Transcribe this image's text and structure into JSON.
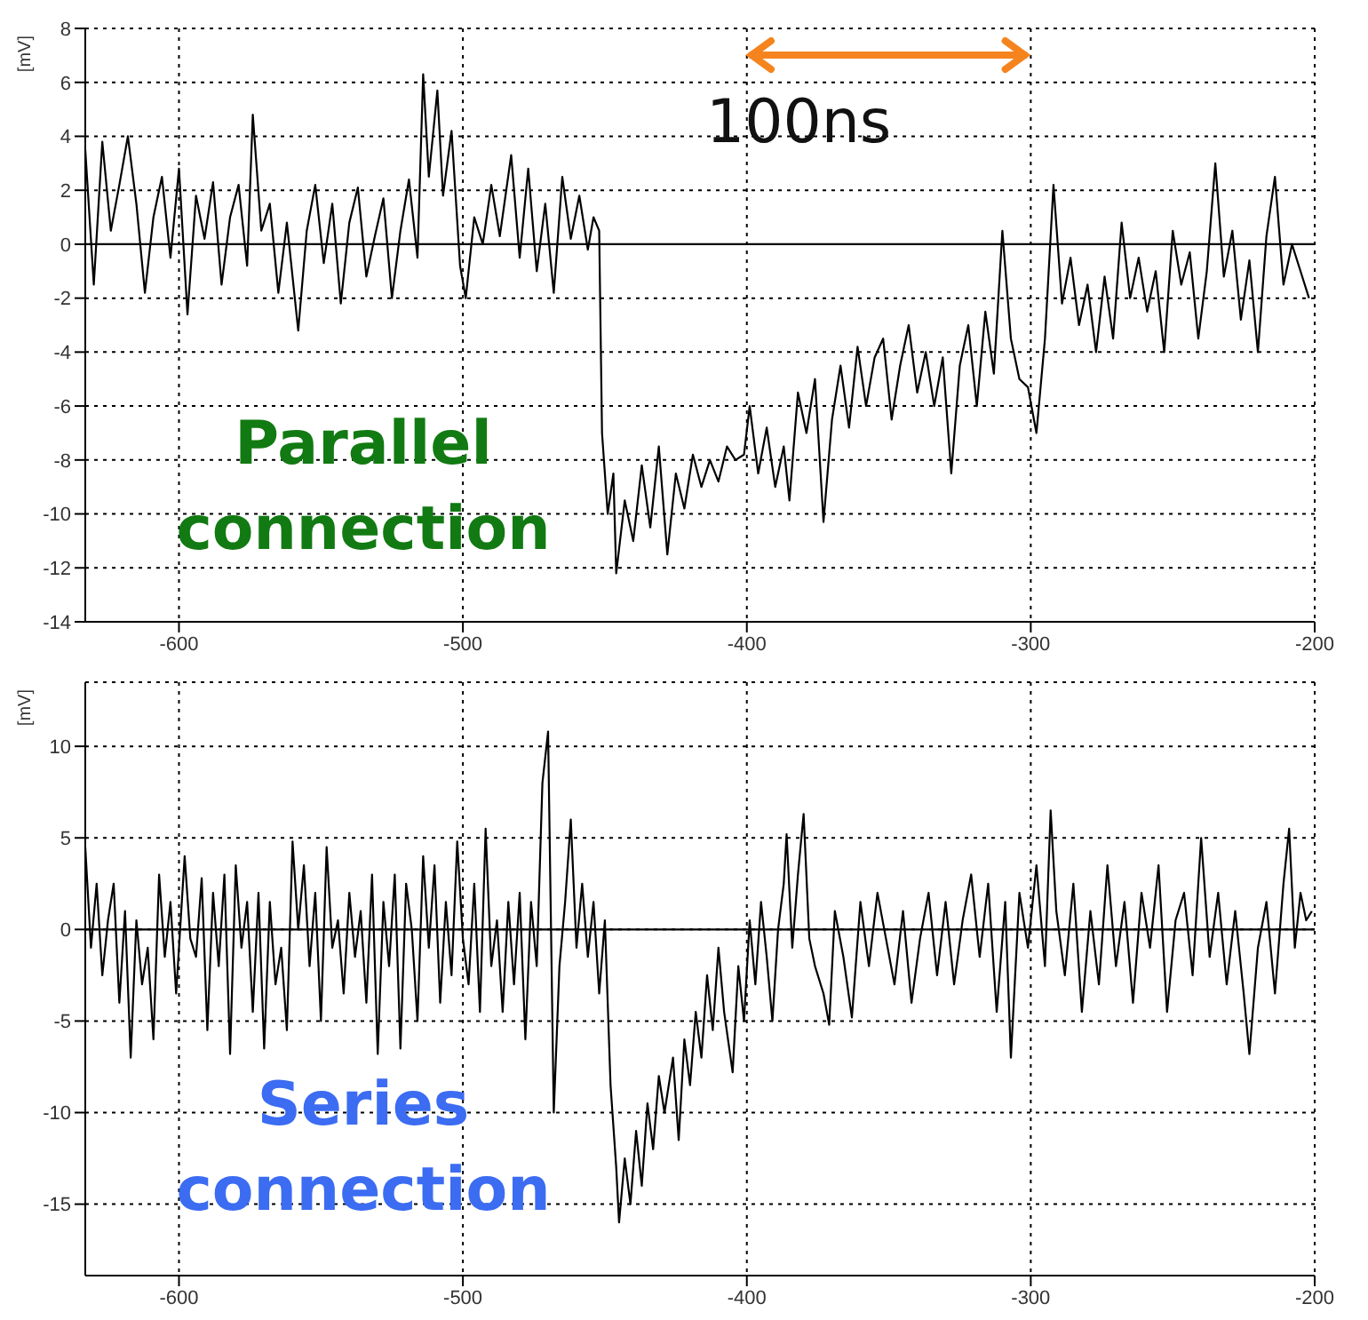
{
  "chart_data": [
    {
      "type": "line",
      "ylabel": "[mV]",
      "xlim": [
        -633,
        -200
      ],
      "xticks": [
        -600,
        -500,
        -400,
        -300,
        -200
      ],
      "ylim": [
        -14,
        8
      ],
      "yticks": [
        -14,
        -12,
        -10,
        -8,
        -6,
        -4,
        -2,
        0,
        2,
        4,
        6,
        8
      ],
      "grid": true,
      "annotations": [
        "100ns",
        "Parallel connection"
      ],
      "ref_lines": [
        {
          "axis": "y",
          "value": 0,
          "color": "#000000",
          "line_style": "solid"
        }
      ],
      "series": [
        {
          "color": "#000000",
          "x": [
            -633,
            -630,
            -627,
            -624,
            -621,
            -618,
            -615,
            -612,
            -609,
            -606,
            -603,
            -600,
            -597,
            -594,
            -591,
            -588,
            -585,
            -582,
            -579,
            -576,
            -574,
            -571,
            -568,
            -565,
            -562,
            -558,
            -555,
            -552,
            -549,
            -546,
            -543,
            -540,
            -537,
            -534,
            -531,
            -528,
            -525,
            -522,
            -519,
            -516,
            -514,
            -512,
            -509,
            -507,
            -504,
            -501,
            -499,
            -496,
            -493,
            -490,
            -487,
            -483,
            -480,
            -477,
            -474,
            -471,
            -468,
            -465,
            -462,
            -459,
            -456,
            -454,
            -452,
            -451,
            -449,
            -447,
            -446,
            -443,
            -440,
            -437,
            -434,
            -431,
            -428,
            -425,
            -422,
            -419,
            -416,
            -413,
            -410,
            -407,
            -404,
            -401,
            -399,
            -396,
            -393,
            -390,
            -387,
            -385,
            -382,
            -379,
            -376,
            -373,
            -370,
            -367,
            -364,
            -361,
            -358,
            -355,
            -352,
            -349,
            -346,
            -343,
            -340,
            -337,
            -334,
            -331,
            -328,
            -325,
            -322,
            -319,
            -316,
            -313,
            -310,
            -307,
            -304,
            -301,
            -298,
            -295,
            -292,
            -289,
            -286,
            -283,
            -280,
            -277,
            -274,
            -271,
            -268,
            -265,
            -262,
            -259,
            -256,
            -253,
            -250,
            -247,
            -244,
            -241,
            -238,
            -235,
            -232,
            -229,
            -226,
            -223,
            -220,
            -217,
            -214,
            -211,
            -208,
            -205,
            -202
          ],
          "values": [
            3.5,
            -1.5,
            3.8,
            0.5,
            2.2,
            4,
            1.5,
            -1.8,
            1,
            2.5,
            -0.5,
            2.8,
            -2.6,
            1.8,
            0.2,
            2.3,
            -1.5,
            1,
            2.2,
            -0.8,
            4.8,
            0.5,
            1.5,
            -1.8,
            0.8,
            -3.2,
            0.5,
            2.2,
            -0.7,
            1.5,
            -2.2,
            0.8,
            2.1,
            -1.2,
            0.3,
            1.7,
            -2,
            0.5,
            2.4,
            -0.5,
            6.3,
            2.5,
            5.7,
            1.8,
            4.2,
            -0.8,
            -2,
            1,
            0,
            2.2,
            0.3,
            3.3,
            -0.5,
            2.8,
            -1,
            1.5,
            -1.8,
            2.5,
            0.2,
            1.8,
            -0.2,
            1,
            0.5,
            -7,
            -10,
            -8.5,
            -12.2,
            -9.5,
            -11,
            -8.2,
            -10.5,
            -7.5,
            -11.5,
            -8.5,
            -9.8,
            -7.8,
            -9,
            -8,
            -8.8,
            -7.5,
            -8,
            -7.8,
            -6,
            -8.5,
            -6.8,
            -9,
            -7.5,
            -9.5,
            -5.5,
            -7,
            -5,
            -10.3,
            -6.5,
            -4.5,
            -6.8,
            -3.8,
            -6,
            -4.2,
            -3.5,
            -6.5,
            -4.5,
            -3,
            -5.5,
            -4,
            -6,
            -4.2,
            -8.5,
            -4.5,
            -3,
            -6,
            -2.5,
            -4.8,
            0.5,
            -3.5,
            -5,
            -5.3,
            -7,
            -3.5,
            2.2,
            -2.2,
            -0.5,
            -3,
            -1.5,
            -4,
            -1.2,
            -3.5,
            0.8,
            -2,
            -0.5,
            -2.5,
            -1,
            -4,
            0.5,
            -1.5,
            -0.3,
            -3.5,
            -1,
            3,
            -1.2,
            0.5,
            -2.8,
            -0.6,
            -4,
            0.3,
            2.5,
            -1.5,
            0,
            -1,
            -2
          ]
        }
      ]
    },
    {
      "type": "line",
      "ylabel": "[mV]",
      "xlim": [
        -633,
        -200
      ],
      "xticks": [
        -600,
        -500,
        -400,
        -300,
        -200
      ],
      "ylim": [
        -18.9,
        13.5
      ],
      "yticks": [
        -15,
        -10,
        -5,
        0,
        5,
        10
      ],
      "grid": true,
      "annotations": [
        "Series connection"
      ],
      "ref_lines": [
        {
          "axis": "y",
          "value": 0,
          "color": "#000000",
          "line_style": "solid"
        }
      ],
      "series": [
        {
          "color": "#000000",
          "x": [
            -633,
            -631,
            -629,
            -627,
            -625,
            -623,
            -621,
            -619,
            -617,
            -615,
            -613,
            -611,
            -609,
            -607,
            -605,
            -603,
            -601,
            -598,
            -596,
            -594,
            -592,
            -590,
            -588,
            -586,
            -584,
            -582,
            -580,
            -578,
            -576,
            -574,
            -572,
            -570,
            -568,
            -566,
            -564,
            -562,
            -560,
            -558,
            -556,
            -554,
            -552,
            -550,
            -548,
            -546,
            -544,
            -542,
            -540,
            -538,
            -536,
            -534,
            -532,
            -530,
            -528,
            -526,
            -524,
            -522,
            -520,
            -518,
            -516,
            -514,
            -512,
            -510,
            -508,
            -506,
            -504,
            -502,
            -500,
            -498,
            -496,
            -494,
            -492,
            -490,
            -488,
            -486,
            -484,
            -482,
            -480,
            -478,
            -476,
            -474,
            -472,
            -470,
            -468,
            -466,
            -464,
            -462,
            -460,
            -458,
            -456,
            -454,
            -452,
            -450,
            -448,
            -446,
            -445,
            -443,
            -441,
            -439,
            -437,
            -435,
            -433,
            -431,
            -429,
            -426,
            -424,
            -422,
            -420,
            -418,
            -416,
            -414,
            -412,
            -410,
            -408,
            -405,
            -403,
            -401,
            -399,
            -397,
            -395,
            -393,
            -391,
            -389,
            -387,
            -386,
            -384,
            -382,
            -380,
            -378,
            -376,
            -373,
            -371,
            -369,
            -366,
            -363,
            -360,
            -357,
            -354,
            -351,
            -348,
            -345,
            -342,
            -339,
            -336,
            -333,
            -330,
            -327,
            -324,
            -321,
            -318,
            -315,
            -312,
            -309,
            -307,
            -304,
            -301,
            -298,
            -295,
            -293,
            -291,
            -288,
            -285,
            -282,
            -279,
            -276,
            -273,
            -270,
            -267,
            -264,
            -261,
            -258,
            -255,
            -252,
            -249,
            -246,
            -243,
            -240,
            -237,
            -234,
            -231,
            -228,
            -225,
            -223,
            -220,
            -217,
            -214,
            -211,
            -209,
            -207,
            -205,
            -203,
            -201
          ],
          "values": [
            4.5,
            -1,
            2.5,
            -2.5,
            0.5,
            2.5,
            -4,
            1,
            -7,
            0.5,
            -3,
            -1,
            -6,
            3,
            -1.5,
            1.5,
            -3.5,
            4,
            -0.5,
            -1.5,
            2.8,
            -5.5,
            2,
            -2,
            3,
            -6.8,
            3.5,
            -1,
            1.5,
            -4.5,
            2,
            -6.5,
            1.5,
            -3,
            -1,
            -5.5,
            4.8,
            0,
            3.5,
            -2,
            2,
            -5,
            4.5,
            -1,
            0.5,
            -3.5,
            2,
            -1.5,
            1,
            -4,
            3,
            -6.8,
            1.5,
            -2,
            3,
            -6.5,
            2.5,
            0,
            -5,
            4,
            -1,
            3.5,
            -4,
            1.5,
            -2.5,
            4.8,
            -0.5,
            -3,
            2.5,
            -4.5,
            5.5,
            -2,
            0.5,
            -4.5,
            1.5,
            -3,
            2,
            -6,
            1.5,
            -2,
            8,
            10.8,
            -10,
            -2,
            1.5,
            6,
            -1,
            2.5,
            -1.5,
            1.5,
            -3.5,
            0.5,
            -8.5,
            -13,
            -16,
            -12.5,
            -15,
            -11,
            -14,
            -9.5,
            -12,
            -8,
            -10,
            -7,
            -11.5,
            -6,
            -8.5,
            -4.5,
            -7,
            -2.5,
            -5.5,
            -1,
            -4.5,
            -7.8,
            -2,
            -5,
            0.5,
            -3,
            1.5,
            -1.5,
            -5,
            0,
            2.5,
            5.2,
            -1,
            3,
            6.3,
            -0.5,
            -2,
            -3.5,
            -5.2,
            1,
            -1.5,
            -4.8,
            1.5,
            -2,
            2,
            -0.5,
            -3,
            1,
            -4,
            -0.5,
            2,
            -2.5,
            1.5,
            -3,
            0.5,
            3,
            -1.5,
            2.5,
            -4.5,
            1.5,
            -7,
            2,
            -1,
            3.5,
            -2,
            6.5,
            1,
            -2.5,
            2.5,
            -4.5,
            1,
            -3,
            3.5,
            -2,
            1.5,
            -4,
            2,
            -1,
            3.5,
            -4.5,
            0.5,
            2,
            -2.5,
            5,
            -1.5,
            2,
            -3,
            1,
            -3.5,
            -6.8,
            -1,
            1.5,
            -3.5,
            2.5,
            5.5,
            -1,
            2,
            0.5,
            1
          ]
        }
      ]
    }
  ]
}
